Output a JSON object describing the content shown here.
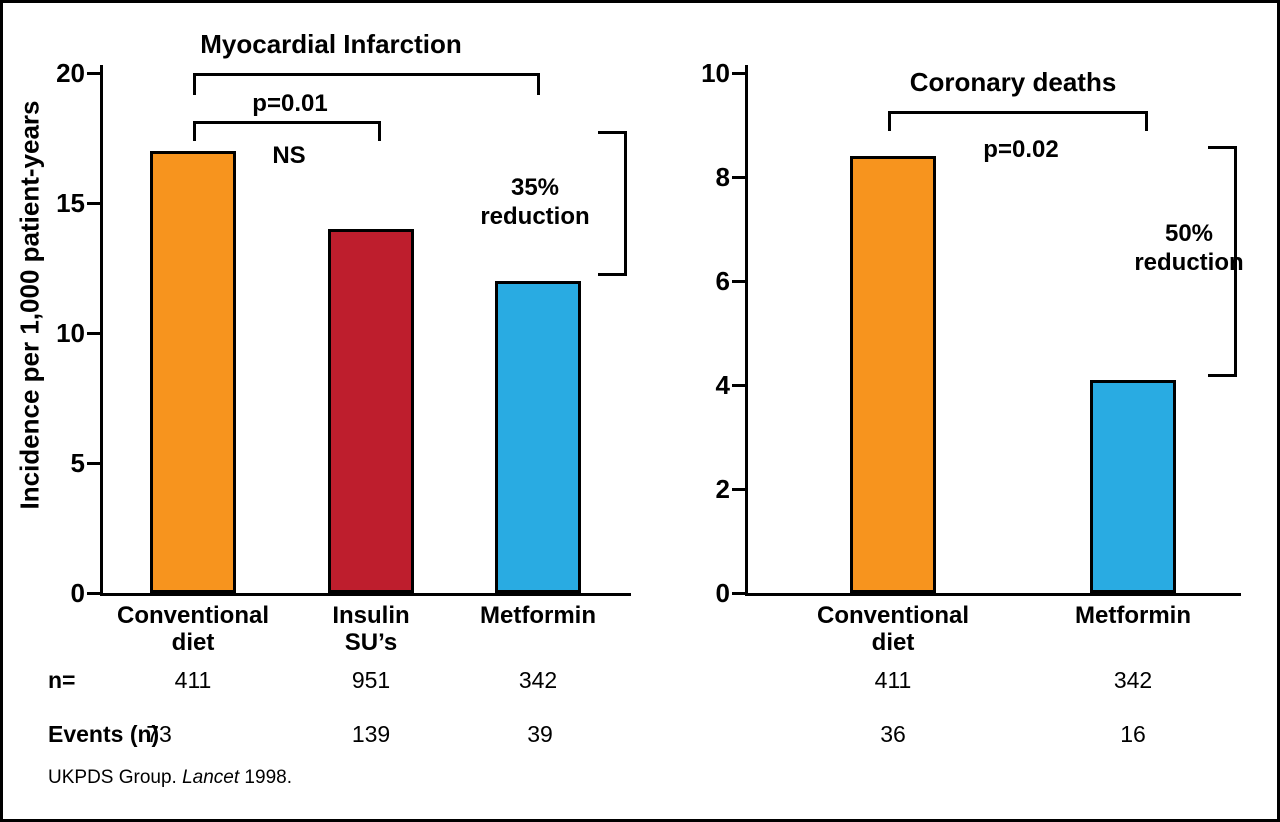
{
  "accent_colors": {
    "orange": "#F7941E",
    "red": "#BE1E2D",
    "blue": "#29ABE2",
    "axis": "#000000"
  },
  "rows": {
    "n_label": "n=",
    "events_label": "Events (n)"
  },
  "footer": {
    "prefix": "UKPDS Group. ",
    "journal": "Lancet",
    "suffix": " 1998."
  },
  "chart_data": [
    {
      "type": "bar",
      "title": "Myocardial Infarction",
      "ylabel": "Incidence per 1,000 patient-years",
      "ylim": [
        0,
        20
      ],
      "yticks": [
        0,
        5,
        10,
        15,
        20
      ],
      "categories": [
        "Conventional\ndiet",
        "Insulin\nSU’s",
        "Metformin"
      ],
      "values": [
        17,
        14,
        12
      ],
      "colors": [
        "orange",
        "red",
        "blue"
      ],
      "n": [
        411,
        951,
        342
      ],
      "events": [
        73,
        139,
        39
      ],
      "legend": "none",
      "grid": false,
      "annotations": [
        {
          "kind": "significance-bracket",
          "label": "p=0.01",
          "between": [
            "Conventional diet",
            "Metformin"
          ]
        },
        {
          "kind": "significance-bracket",
          "label": "NS",
          "between": [
            "Conventional diet",
            "Insulin SU’s"
          ]
        },
        {
          "kind": "reduction-bracket",
          "label": "35%\nreduction",
          "applies_to": "Metformin"
        }
      ]
    },
    {
      "type": "bar",
      "title": "Coronary deaths",
      "ylabel": "Incidence per 1,000 patient-years",
      "ylim": [
        0,
        10
      ],
      "yticks": [
        0,
        2,
        4,
        6,
        8,
        10
      ],
      "categories": [
        "Conventional\ndiet",
        "Metformin"
      ],
      "values": [
        8.4,
        4.1
      ],
      "colors": [
        "orange",
        "blue"
      ],
      "n": [
        411,
        342
      ],
      "events": [
        36,
        16
      ],
      "legend": "none",
      "grid": false,
      "annotations": [
        {
          "kind": "significance-bracket",
          "label": "p=0.02",
          "between": [
            "Conventional diet",
            "Metformin"
          ]
        },
        {
          "kind": "reduction-bracket",
          "label": "50%\nreduction",
          "applies_to": "Metformin"
        }
      ]
    }
  ]
}
